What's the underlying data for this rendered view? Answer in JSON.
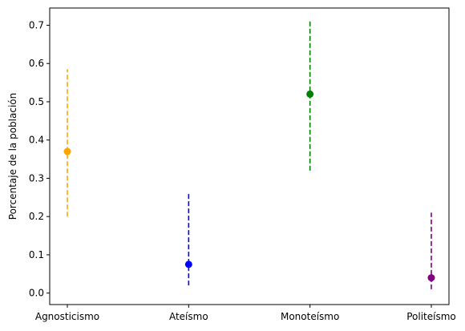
{
  "chart_data": {
    "type": "scatter",
    "title": "",
    "xlabel": "",
    "ylabel": "Porcentaje de la población",
    "categories": [
      "Agnosticismo",
      "Ateísmo",
      "Monoteísmo",
      "Politeísmo"
    ],
    "values": [
      0.37,
      0.075,
      0.52,
      0.04
    ],
    "lower": [
      0.2,
      0.02,
      0.32,
      0.01
    ],
    "upper": [
      0.585,
      0.265,
      0.715,
      0.21
    ],
    "colors": [
      "#ffa500",
      "#0000ff",
      "#008000",
      "#800080"
    ],
    "ylim": [
      -0.03,
      0.745
    ],
    "yticks": [
      "0.0",
      "0.1",
      "0.2",
      "0.3",
      "0.4",
      "0.5",
      "0.6",
      "0.7"
    ],
    "error_bar_style": "dashed",
    "grid": false,
    "legend": "none"
  }
}
